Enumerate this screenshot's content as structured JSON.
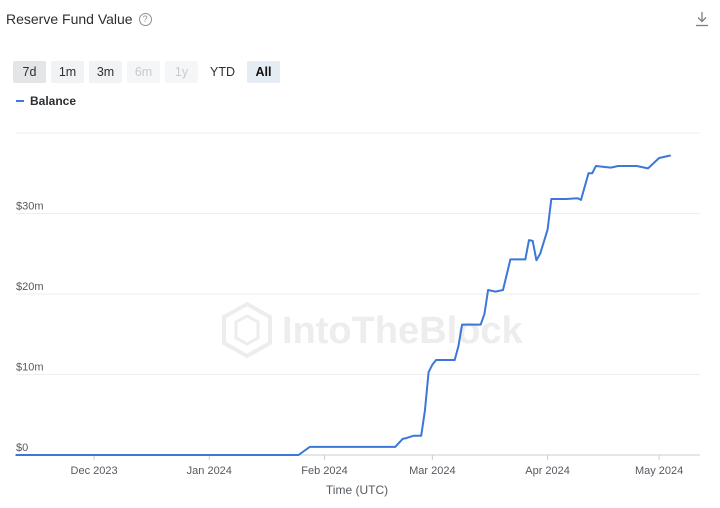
{
  "header": {
    "title": "Reserve Fund Value",
    "help_glyph": "?"
  },
  "range_buttons": [
    {
      "label": "7d",
      "state": "selected-light"
    },
    {
      "label": "1m",
      "state": "enabled"
    },
    {
      "label": "3m",
      "state": "enabled"
    },
    {
      "label": "6m",
      "state": "disabled"
    },
    {
      "label": "1y",
      "state": "disabled"
    },
    {
      "label": "YTD",
      "state": "plain"
    },
    {
      "label": "All",
      "state": "active"
    }
  ],
  "legend": {
    "label": "Balance",
    "color": "#3b78d8"
  },
  "watermark": "IntoTheBlock",
  "chart_data": {
    "type": "line",
    "title": "Reserve Fund Value",
    "xlabel": "Time (UTC)",
    "ylabel": "",
    "x_ticks": [
      "Dec 2023",
      "Jan 2024",
      "Feb 2024",
      "Mar 2024",
      "Apr 2024",
      "May 2024"
    ],
    "y_ticks": [
      {
        "value": 0,
        "label": "$0"
      },
      {
        "value": 10,
        "label": "$10m"
      },
      {
        "value": 20,
        "label": "$20m"
      },
      {
        "value": 30,
        "label": "$30m"
      }
    ],
    "y_unit": "millions USD",
    "xlim": [
      "2023-11-10",
      "2024-05-12"
    ],
    "ylim": [
      0,
      40
    ],
    "grid": true,
    "legend_position": "top-left",
    "series": [
      {
        "name": "Balance",
        "color": "#3b78d8",
        "points": [
          [
            "2023-11-10",
            0
          ],
          [
            "2024-01-25",
            0
          ],
          [
            "2024-01-28",
            1.0
          ],
          [
            "2024-02-20",
            1.0
          ],
          [
            "2024-02-22",
            2.0
          ],
          [
            "2024-02-23",
            2.1
          ],
          [
            "2024-02-25",
            2.4
          ],
          [
            "2024-02-27",
            2.4
          ],
          [
            "2024-02-28",
            5.5
          ],
          [
            "2024-02-29",
            10.3
          ],
          [
            "2024-03-01",
            11.2
          ],
          [
            "2024-03-02",
            11.8
          ],
          [
            "2024-03-07",
            11.8
          ],
          [
            "2024-03-08",
            13.5
          ],
          [
            "2024-03-09",
            16.2
          ],
          [
            "2024-03-14",
            16.2
          ],
          [
            "2024-03-15",
            17.5
          ],
          [
            "2024-03-16",
            20.5
          ],
          [
            "2024-03-18",
            20.3
          ],
          [
            "2024-03-20",
            20.5
          ],
          [
            "2024-03-22",
            24.3
          ],
          [
            "2024-03-26",
            24.3
          ],
          [
            "2024-03-27",
            26.7
          ],
          [
            "2024-03-28",
            26.6
          ],
          [
            "2024-03-29",
            24.2
          ],
          [
            "2024-03-30",
            25.0
          ],
          [
            "2024-04-01",
            28.0
          ],
          [
            "2024-04-02",
            31.8
          ],
          [
            "2024-04-06",
            31.8
          ],
          [
            "2024-04-09",
            31.9
          ],
          [
            "2024-04-10",
            31.7
          ],
          [
            "2024-04-12",
            35.0
          ],
          [
            "2024-04-13",
            35.0
          ],
          [
            "2024-04-14",
            35.9
          ],
          [
            "2024-04-18",
            35.7
          ],
          [
            "2024-04-20",
            35.9
          ],
          [
            "2024-04-25",
            35.9
          ],
          [
            "2024-04-28",
            35.6
          ],
          [
            "2024-05-01",
            36.9
          ],
          [
            "2024-05-04",
            37.2
          ]
        ]
      }
    ]
  }
}
